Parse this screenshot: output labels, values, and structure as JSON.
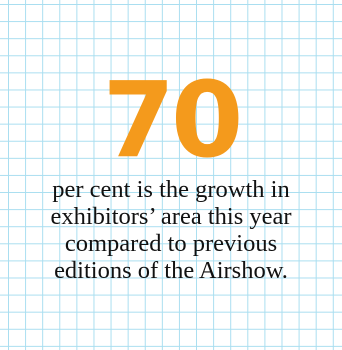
{
  "stat": {
    "value": "70",
    "caption_lines": [
      "per cent is the growth in",
      "exhibitors’ area this year",
      "compared to previous",
      "editions of the Airshow."
    ]
  },
  "colors": {
    "accent": "#f49a1c",
    "grid": "#a9def0",
    "text": "#111111"
  }
}
